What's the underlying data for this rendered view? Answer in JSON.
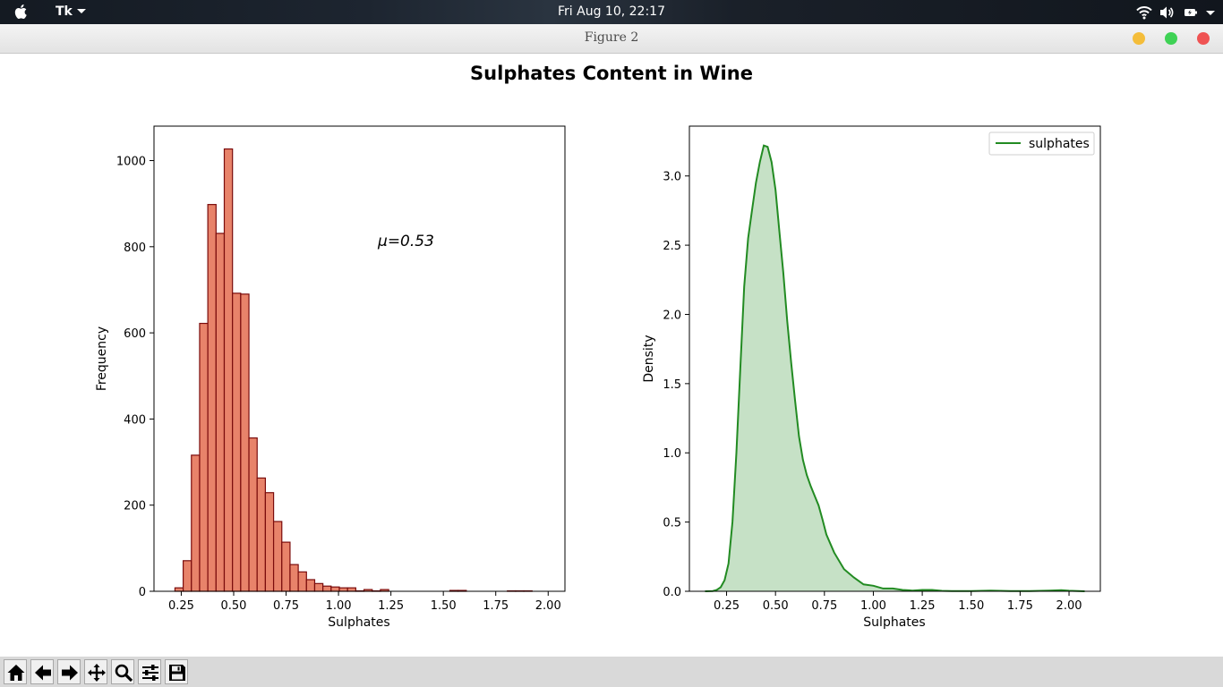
{
  "menubar": {
    "app_name": "Tk",
    "clock": "Fri Aug 10, 22:17",
    "icons": [
      "apple-icon",
      "wifi-icon",
      "volume-icon",
      "battery-icon",
      "chevron-down-icon"
    ]
  },
  "window": {
    "title": "Figure 2",
    "buttons": [
      "minimize",
      "maximize",
      "close"
    ],
    "colors": {
      "minimize": "#f4bd3a",
      "maximize": "#3fd255",
      "close": "#ef5353"
    }
  },
  "figure": {
    "suptitle": "Sulphates Content in Wine"
  },
  "toolbar": {
    "icons": [
      "home-icon",
      "back-arrow-icon",
      "forward-arrow-icon",
      "pan-icon",
      "zoom-icon",
      "configure-subplots-icon",
      "save-icon"
    ]
  },
  "chart_data": [
    {
      "type": "bar",
      "subtype": "histogram",
      "title": "",
      "xlabel": "Sulphates",
      "ylabel": "Frequency",
      "annotation": "μ=0.53",
      "xlim": [
        0.12,
        2.08
      ],
      "ylim": [
        0,
        1080
      ],
      "xticks": [
        0.25,
        0.5,
        0.75,
        1.0,
        1.25,
        1.5,
        1.75,
        2.0
      ],
      "xtick_labels": [
        "0.25",
        "0.50",
        "0.75",
        "1.00",
        "1.25",
        "1.50",
        "1.75",
        "2.00"
      ],
      "yticks": [
        0,
        200,
        400,
        600,
        800,
        1000
      ],
      "ytick_labels": [
        "0",
        "200",
        "400",
        "600",
        "800",
        "1000"
      ],
      "bin_width": 0.0392,
      "bins": [
        {
          "x": 0.22,
          "value": 8
        },
        {
          "x": 0.2592,
          "value": 71
        },
        {
          "x": 0.2984,
          "value": 316
        },
        {
          "x": 0.3376,
          "value": 622
        },
        {
          "x": 0.3768,
          "value": 898
        },
        {
          "x": 0.416,
          "value": 831
        },
        {
          "x": 0.4552,
          "value": 1027
        },
        {
          "x": 0.4944,
          "value": 692
        },
        {
          "x": 0.5336,
          "value": 690
        },
        {
          "x": 0.5728,
          "value": 356
        },
        {
          "x": 0.612,
          "value": 263
        },
        {
          "x": 0.6512,
          "value": 229
        },
        {
          "x": 0.6904,
          "value": 162
        },
        {
          "x": 0.7296,
          "value": 114
        },
        {
          "x": 0.7688,
          "value": 62
        },
        {
          "x": 0.808,
          "value": 45
        },
        {
          "x": 0.8472,
          "value": 27
        },
        {
          "x": 0.8864,
          "value": 18
        },
        {
          "x": 0.9256,
          "value": 12
        },
        {
          "x": 0.9648,
          "value": 10
        },
        {
          "x": 1.004,
          "value": 8
        },
        {
          "x": 1.0432,
          "value": 8
        },
        {
          "x": 1.0824,
          "value": 1
        },
        {
          "x": 1.1216,
          "value": 4
        },
        {
          "x": 1.1608,
          "value": 1
        },
        {
          "x": 1.2,
          "value": 4
        },
        {
          "x": 1.5312,
          "value": 2
        },
        {
          "x": 1.5704,
          "value": 2
        },
        {
          "x": 1.8056,
          "value": 1
        },
        {
          "x": 1.8448,
          "value": 1
        },
        {
          "x": 1.884,
          "value": 1
        }
      ],
      "colors": {
        "fill": "#e8836a",
        "edge": "#7a0c0c"
      }
    },
    {
      "type": "area",
      "subtype": "kde",
      "title": "",
      "xlabel": "Sulphates",
      "ylabel": "Density",
      "legend": {
        "entries": [
          "sulphates"
        ],
        "placement": "top-right"
      },
      "xlim": [
        0.06,
        2.16
      ],
      "ylim": [
        0,
        3.36
      ],
      "xticks": [
        0.25,
        0.5,
        0.75,
        1.0,
        1.25,
        1.5,
        1.75,
        2.0
      ],
      "xtick_labels": [
        "0.25",
        "0.50",
        "0.75",
        "1.00",
        "1.25",
        "1.50",
        "1.75",
        "2.00"
      ],
      "yticks": [
        0,
        0.5,
        1.0,
        1.5,
        2.0,
        2.5,
        3.0
      ],
      "ytick_labels": [
        "0.0",
        "0.5",
        "1.0",
        "1.5",
        "2.0",
        "2.5",
        "3.0"
      ],
      "series": [
        {
          "name": "sulphates",
          "x": [
            0.14,
            0.18,
            0.2,
            0.22,
            0.24,
            0.26,
            0.28,
            0.3,
            0.32,
            0.34,
            0.36,
            0.38,
            0.4,
            0.42,
            0.44,
            0.46,
            0.48,
            0.5,
            0.52,
            0.54,
            0.56,
            0.58,
            0.6,
            0.62,
            0.64,
            0.66,
            0.68,
            0.7,
            0.72,
            0.74,
            0.76,
            0.8,
            0.85,
            0.9,
            0.95,
            1.0,
            1.05,
            1.1,
            1.15,
            1.2,
            1.25,
            1.3,
            1.35,
            1.4,
            1.5,
            1.6,
            1.7,
            1.8,
            1.9,
            1.96,
            2.0,
            2.08
          ],
          "y": [
            0.0,
            0.002,
            0.01,
            0.03,
            0.08,
            0.2,
            0.5,
            1.0,
            1.6,
            2.2,
            2.55,
            2.75,
            2.95,
            3.1,
            3.22,
            3.21,
            3.1,
            2.9,
            2.6,
            2.3,
            1.95,
            1.65,
            1.38,
            1.12,
            0.95,
            0.84,
            0.76,
            0.69,
            0.62,
            0.52,
            0.41,
            0.28,
            0.16,
            0.1,
            0.05,
            0.04,
            0.02,
            0.02,
            0.01,
            0.005,
            0.01,
            0.01,
            0.003,
            0.002,
            0.002,
            0.005,
            0.002,
            0.002,
            0.005,
            0.008,
            0.004,
            0.0
          ],
          "color": "#228b22",
          "fill": "#c6e1c6"
        }
      ]
    }
  ]
}
